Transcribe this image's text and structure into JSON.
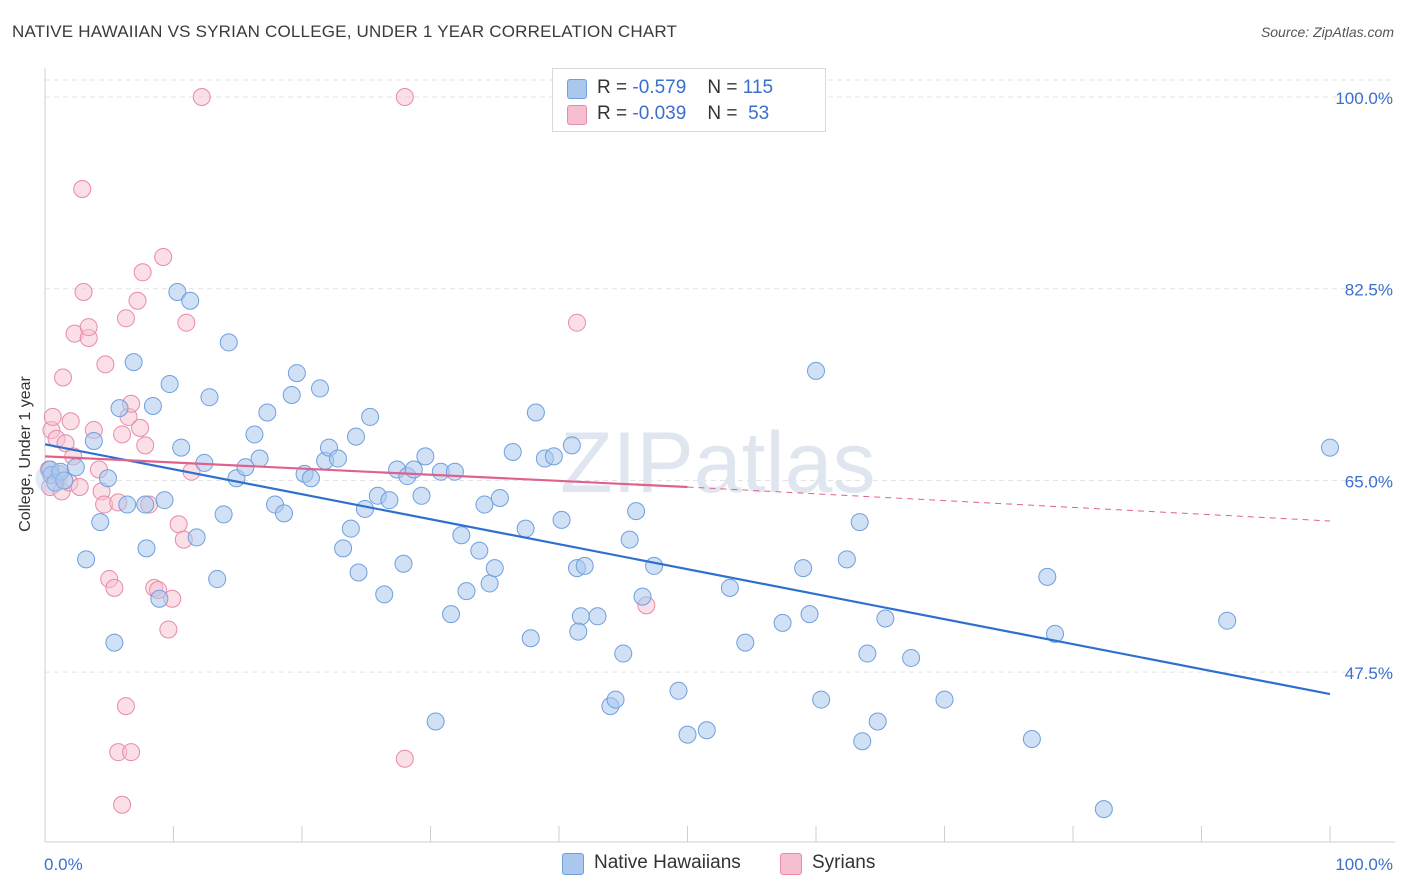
{
  "title": "NATIVE HAWAIIAN VS SYRIAN COLLEGE, UNDER 1 YEAR CORRELATION CHART",
  "source": "Source: ZipAtlas.com",
  "watermark": "ZIPatlas",
  "legend": {
    "series1": {
      "r_label": "R =",
      "r_value": "-0.579",
      "n_label": "N =",
      "n_value": "115"
    },
    "series2": {
      "r_label": "R =",
      "r_value": "-0.039",
      "n_label": "N =",
      "n_value": "53"
    }
  },
  "colors": {
    "blue_fill": "#aac8ee",
    "blue_stroke": "#6f9fde",
    "blue_line": "#2f6fce",
    "pink_fill": "#f6bfd0",
    "pink_stroke": "#e88aa8",
    "pink_line": "#e0628c",
    "tick_label": "#3a6fd0",
    "grid": "#e3e3e3"
  },
  "chart_data": {
    "type": "scatter",
    "title": "NATIVE HAWAIIAN VS SYRIAN COLLEGE, UNDER 1 YEAR CORRELATION CHART",
    "xlabel": "",
    "ylabel": "College, Under 1 year",
    "xlim": [
      0,
      100
    ],
    "ylim": [
      32,
      100
    ],
    "x_tick_labels": [
      "0.0%",
      "100.0%"
    ],
    "y_ticks": [
      100.0,
      82.5,
      65.0,
      47.5
    ],
    "y_tick_labels": [
      "100.0%",
      "82.5%",
      "65.0%",
      "47.5%"
    ],
    "series": [
      {
        "name": "Native Hawaiians",
        "r": -0.579,
        "n": 115,
        "trend": {
          "x0": 0,
          "y0": 68.3,
          "x1": 100,
          "y1": 45.5
        },
        "points": [
          [
            0.4,
            66.0
          ],
          [
            0.5,
            65.5
          ],
          [
            0.8,
            64.8
          ],
          [
            1.2,
            65.8
          ],
          [
            1.5,
            65.0
          ],
          [
            2.4,
            66.2
          ],
          [
            3.2,
            57.8
          ],
          [
            3.8,
            68.6
          ],
          [
            4.3,
            61.2
          ],
          [
            4.9,
            65.2
          ],
          [
            5.4,
            50.2
          ],
          [
            5.8,
            71.6
          ],
          [
            6.4,
            62.8
          ],
          [
            6.9,
            75.8
          ],
          [
            7.8,
            62.8
          ],
          [
            7.9,
            58.8
          ],
          [
            8.4,
            71.8
          ],
          [
            8.9,
            54.2
          ],
          [
            9.3,
            63.2
          ],
          [
            9.7,
            73.8
          ],
          [
            10.3,
            82.2
          ],
          [
            10.6,
            68.0
          ],
          [
            11.3,
            81.4
          ],
          [
            11.8,
            59.8
          ],
          [
            12.4,
            66.6
          ],
          [
            12.8,
            72.6
          ],
          [
            13.4,
            56.0
          ],
          [
            13.9,
            61.9
          ],
          [
            14.3,
            77.6
          ],
          [
            14.9,
            65.2
          ],
          [
            15.6,
            66.2
          ],
          [
            16.3,
            69.2
          ],
          [
            16.7,
            67.0
          ],
          [
            17.3,
            71.2
          ],
          [
            17.9,
            62.8
          ],
          [
            18.6,
            62.0
          ],
          [
            19.2,
            72.8
          ],
          [
            19.6,
            74.8
          ],
          [
            20.2,
            65.6
          ],
          [
            20.7,
            65.2
          ],
          [
            21.4,
            73.4
          ],
          [
            21.8,
            66.8
          ],
          [
            22.1,
            68.0
          ],
          [
            22.8,
            67.0
          ],
          [
            23.2,
            58.8
          ],
          [
            23.8,
            60.6
          ],
          [
            24.2,
            69.0
          ],
          [
            24.4,
            56.6
          ],
          [
            24.9,
            62.4
          ],
          [
            25.3,
            70.8
          ],
          [
            25.9,
            63.6
          ],
          [
            26.4,
            54.6
          ],
          [
            26.8,
            63.2
          ],
          [
            27.4,
            66.0
          ],
          [
            27.9,
            57.4
          ],
          [
            28.2,
            65.4
          ],
          [
            28.7,
            66.0
          ],
          [
            29.3,
            63.6
          ],
          [
            29.6,
            67.2
          ],
          [
            30.4,
            43.0
          ],
          [
            30.8,
            65.8
          ],
          [
            31.9,
            65.8
          ],
          [
            31.6,
            52.8
          ],
          [
            32.4,
            60.0
          ],
          [
            32.8,
            54.9
          ],
          [
            33.8,
            58.6
          ],
          [
            34.2,
            62.8
          ],
          [
            34.6,
            55.6
          ],
          [
            35.0,
            57.0
          ],
          [
            35.4,
            63.4
          ],
          [
            36.4,
            67.6
          ],
          [
            37.4,
            60.6
          ],
          [
            37.8,
            50.6
          ],
          [
            38.2,
            71.2
          ],
          [
            38.9,
            67.0
          ],
          [
            39.6,
            67.2
          ],
          [
            40.2,
            61.4
          ],
          [
            41.0,
            68.2
          ],
          [
            41.4,
            57.0
          ],
          [
            41.7,
            52.6
          ],
          [
            41.5,
            51.2
          ],
          [
            42.0,
            57.2
          ],
          [
            43.0,
            52.6
          ],
          [
            44.0,
            44.4
          ],
          [
            44.4,
            45.0
          ],
          [
            45.0,
            49.2
          ],
          [
            45.5,
            59.6
          ],
          [
            46.0,
            62.2
          ],
          [
            46.5,
            54.4
          ],
          [
            47.4,
            57.2
          ],
          [
            49.3,
            45.8
          ],
          [
            50.0,
            41.8
          ],
          [
            51.5,
            42.2
          ],
          [
            53.3,
            55.2
          ],
          [
            54.5,
            50.2
          ],
          [
            57.4,
            52.0
          ],
          [
            59.0,
            57.0
          ],
          [
            59.5,
            52.8
          ],
          [
            60.0,
            75.0
          ],
          [
            60.4,
            45.0
          ],
          [
            62.4,
            57.8
          ],
          [
            63.4,
            61.2
          ],
          [
            63.6,
            41.2
          ],
          [
            64.0,
            49.2
          ],
          [
            64.8,
            43.0
          ],
          [
            65.4,
            52.4
          ],
          [
            67.4,
            48.8
          ],
          [
            70.0,
            45.0
          ],
          [
            76.8,
            41.4
          ],
          [
            82.4,
            35.0
          ],
          [
            78.0,
            56.2
          ],
          [
            78.6,
            51.0
          ],
          [
            92.0,
            52.2
          ],
          [
            100.0,
            68.0
          ]
        ]
      },
      {
        "name": "Syrians",
        "r": -0.039,
        "n": 53,
        "trend": {
          "x0": 0,
          "y0": 67.2,
          "x1": 50,
          "y1": 64.4
        },
        "trend_extension": {
          "x0": 50,
          "y0": 64.4,
          "x1": 100,
          "y1": 61.3
        },
        "points": [
          [
            0.3,
            66.0
          ],
          [
            0.4,
            64.4
          ],
          [
            0.5,
            69.6
          ],
          [
            0.6,
            70.8
          ],
          [
            0.9,
            68.8
          ],
          [
            1.1,
            65.6
          ],
          [
            1.3,
            64.0
          ],
          [
            1.6,
            68.4
          ],
          [
            1.9,
            64.8
          ],
          [
            2.0,
            70.4
          ],
          [
            2.2,
            67.2
          ],
          [
            2.3,
            78.4
          ],
          [
            2.7,
            64.4
          ],
          [
            3.0,
            82.2
          ],
          [
            3.4,
            78.0
          ],
          [
            3.4,
            79.0
          ],
          [
            2.9,
            91.6
          ],
          [
            1.4,
            74.4
          ],
          [
            3.8,
            69.6
          ],
          [
            4.2,
            66.0
          ],
          [
            4.4,
            64.0
          ],
          [
            4.6,
            62.8
          ],
          [
            4.7,
            75.6
          ],
          [
            5.0,
            56.0
          ],
          [
            5.4,
            55.2
          ],
          [
            5.7,
            63.0
          ],
          [
            6.0,
            69.2
          ],
          [
            6.3,
            79.8
          ],
          [
            6.5,
            70.8
          ],
          [
            6.7,
            72.0
          ],
          [
            7.2,
            81.4
          ],
          [
            7.4,
            69.8
          ],
          [
            7.6,
            84.0
          ],
          [
            7.8,
            68.2
          ],
          [
            8.1,
            62.8
          ],
          [
            8.5,
            55.2
          ],
          [
            8.8,
            55.0
          ],
          [
            9.2,
            85.4
          ],
          [
            9.6,
            51.4
          ],
          [
            9.9,
            54.2
          ],
          [
            10.4,
            61.0
          ],
          [
            10.8,
            59.6
          ],
          [
            11.0,
            79.4
          ],
          [
            11.4,
            65.8
          ],
          [
            12.2,
            100.0
          ],
          [
            28.0,
            100.0
          ],
          [
            41.4,
            79.4
          ],
          [
            46.8,
            53.6
          ],
          [
            28.0,
            39.6
          ],
          [
            6.3,
            44.4
          ],
          [
            5.7,
            40.2
          ],
          [
            6.7,
            40.2
          ],
          [
            6.0,
            35.4
          ]
        ]
      }
    ]
  }
}
